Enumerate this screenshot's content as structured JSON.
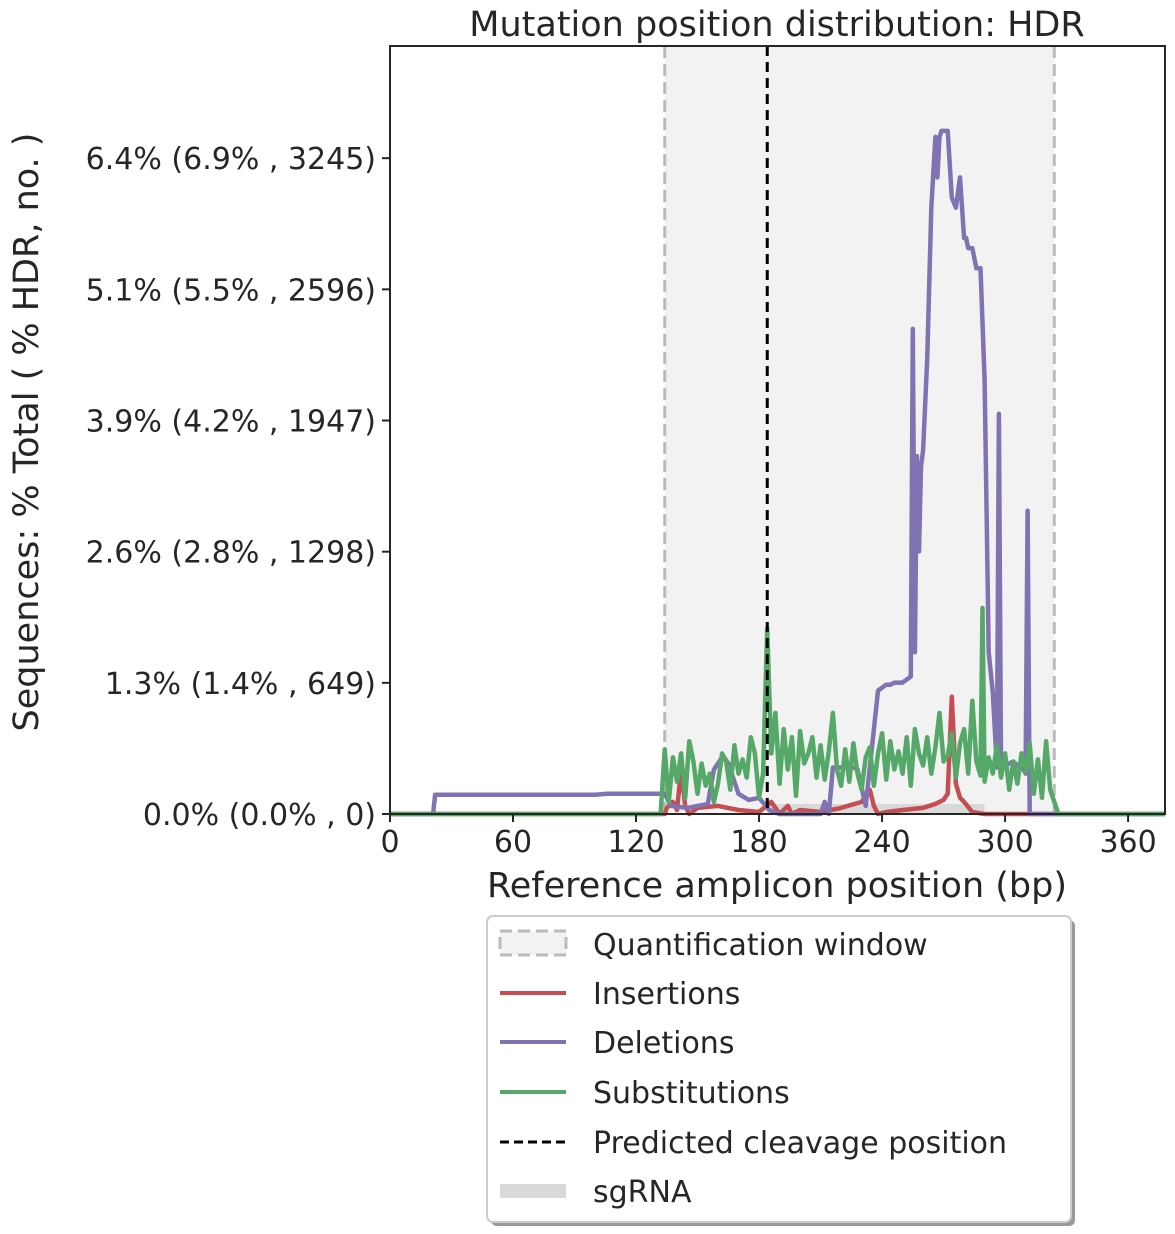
{
  "chart_data": {
    "type": "line",
    "title": "Mutation position distribution: HDR",
    "xlabel": "Reference amplicon position (bp)",
    "ylabel": "Sequences: % Total ( % HDR, no. )",
    "xlim": [
      0,
      378
    ],
    "ylim": [
      0,
      3800
    ],
    "x_ticks": [
      0,
      60,
      120,
      180,
      240,
      300,
      360
    ],
    "x_tick_labels": [
      "0",
      "60",
      "120",
      "180",
      "240",
      "300",
      "360"
    ],
    "y_ticks": [
      0,
      649,
      1298,
      1947,
      2596,
      3245
    ],
    "y_tick_labels": [
      "0.0% (0.0% , 0)",
      "1.3% (1.4% , 649)",
      "2.6% (2.8% , 1298)",
      "3.9% (4.2% , 1947)",
      "5.1% (5.5% , 2596)",
      "6.4% (6.9% , 3245)"
    ],
    "quantification_window": [
      134,
      324
    ],
    "predicted_cleavage_position": 184,
    "sgrna": [
      184,
      290
    ],
    "legend_placement": "below plot",
    "colors": {
      "insertions": "#c44e52",
      "deletions": "#8172b2",
      "substitutions": "#55a868",
      "window_fill": "#f2f2f2",
      "window_edge": "#bbbbbb",
      "cleavage": "#000000",
      "sgrna": "#d9d9d9"
    },
    "series": [
      {
        "name": "Insertions",
        "color": "#c44e52",
        "x": [
          0,
          134,
          135,
          138,
          140,
          142,
          144,
          146,
          150,
          160,
          170,
          180,
          186,
          190,
          194,
          196,
          200,
          210,
          220,
          230,
          234,
          236,
          238,
          242,
          250,
          260,
          266,
          270,
          272,
          274,
          276,
          278,
          280,
          284,
          290,
          300,
          310,
          320,
          324,
          378
        ],
        "y": [
          0,
          0,
          30,
          60,
          20,
          220,
          40,
          0,
          30,
          40,
          20,
          10,
          60,
          0,
          40,
          0,
          20,
          10,
          30,
          60,
          120,
          40,
          0,
          10,
          20,
          30,
          50,
          70,
          100,
          580,
          150,
          80,
          60,
          10,
          0,
          0,
          0,
          0,
          0,
          0
        ]
      },
      {
        "name": "Deletions",
        "color": "#8172b2",
        "x": [
          0,
          21,
          22,
          50,
          100,
          106,
          130,
          134,
          137,
          145,
          150,
          155,
          158,
          162,
          163,
          165,
          170,
          175,
          180,
          185,
          190,
          195,
          200,
          205,
          210,
          212,
          214,
          216,
          218,
          220,
          222,
          226,
          228,
          232,
          238,
          242,
          244,
          246,
          250,
          254,
          255,
          256,
          257,
          258,
          259,
          260,
          262,
          264,
          266,
          267,
          268,
          269,
          270,
          272,
          274,
          276,
          278,
          280,
          281,
          282,
          284,
          286,
          288,
          290,
          292,
          294,
          296,
          297,
          298,
          300,
          302,
          304,
          306,
          308,
          310,
          311,
          312,
          320,
          324,
          330,
          378
        ],
        "y": [
          0,
          0,
          95,
          95,
          95,
          100,
          100,
          100,
          40,
          30,
          40,
          50,
          220,
          280,
          280,
          250,
          100,
          70,
          80,
          20,
          0,
          0,
          0,
          0,
          0,
          60,
          0,
          230,
          230,
          230,
          230,
          230,
          220,
          40,
          610,
          640,
          640,
          650,
          650,
          680,
          2400,
          800,
          1770,
          1300,
          1720,
          1800,
          2250,
          3000,
          3350,
          3150,
          3350,
          3380,
          3380,
          3380,
          3050,
          3000,
          3150,
          2850,
          2850,
          2800,
          2800,
          2700,
          2700,
          2150,
          800,
          600,
          230,
          1980,
          240,
          240,
          250,
          260,
          240,
          240,
          200,
          1500,
          0,
          0,
          0,
          0,
          0
        ]
      },
      {
        "name": "Substitutions",
        "color": "#55a868",
        "x": [
          0,
          132,
          134,
          136,
          138,
          140,
          142,
          144,
          146,
          148,
          150,
          152,
          154,
          156,
          158,
          160,
          162,
          164,
          166,
          168,
          170,
          172,
          174,
          176,
          178,
          180,
          182,
          184,
          186,
          188,
          190,
          192,
          194,
          196,
          198,
          200,
          202,
          204,
          206,
          208,
          210,
          212,
          214,
          216,
          218,
          220,
          222,
          224,
          226,
          228,
          230,
          232,
          234,
          236,
          238,
          240,
          242,
          244,
          246,
          248,
          250,
          252,
          254,
          256,
          258,
          260,
          262,
          264,
          266,
          268,
          270,
          272,
          274,
          276,
          278,
          280,
          282,
          284,
          286,
          288,
          289,
          290,
          292,
          294,
          296,
          298,
          300,
          302,
          304,
          306,
          308,
          310,
          312,
          314,
          316,
          318,
          320,
          322,
          324,
          326,
          378
        ],
        "y": [
          0,
          0,
          320,
          60,
          280,
          160,
          300,
          80,
          360,
          260,
          100,
          250,
          140,
          200,
          60,
          150,
          300,
          260,
          120,
          340,
          200,
          270,
          180,
          380,
          300,
          80,
          200,
          920,
          300,
          500,
          150,
          420,
          220,
          380,
          90,
          410,
          250,
          300,
          380,
          180,
          340,
          170,
          310,
          500,
          220,
          140,
          320,
          160,
          350,
          200,
          120,
          280,
          330,
          140,
          300,
          400,
          170,
          360,
          220,
          310,
          200,
          380,
          140,
          420,
          300,
          240,
          380,
          200,
          330,
          500,
          260,
          290,
          400,
          180,
          350,
          420,
          200,
          560,
          260,
          190,
          1020,
          160,
          280,
          200,
          340,
          180,
          300,
          120,
          260,
          150,
          300,
          210,
          350,
          100,
          270,
          80,
          360,
          120,
          60,
          0,
          0
        ]
      }
    ]
  },
  "legend": {
    "items": [
      {
        "label": "Quantification window"
      },
      {
        "label": "Insertions"
      },
      {
        "label": "Deletions"
      },
      {
        "label": "Substitutions"
      },
      {
        "label": "Predicted cleavage position"
      },
      {
        "label": "sgRNA"
      }
    ]
  }
}
